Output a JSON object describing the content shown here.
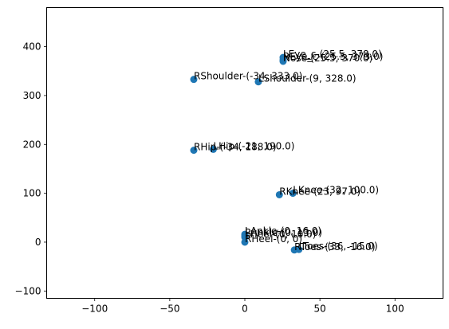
{
  "chart_data": {
    "type": "scatter",
    "title": "",
    "xlabel": "",
    "ylabel": "",
    "xlim": [
      -132,
      132
    ],
    "ylim": [
      -115,
      480
    ],
    "grid": false,
    "xticks": [
      -100,
      -50,
      0,
      50,
      100
    ],
    "yticks": [
      -100,
      0,
      100,
      200,
      300,
      400
    ],
    "xtick_labels": [
      "−100",
      "−50",
      "0",
      "50",
      "100"
    ],
    "ytick_labels": [
      "−100",
      "0",
      "100",
      "200",
      "300",
      "400"
    ],
    "marker_color": "#1f77b4",
    "points": [
      {
        "x": 25.5,
        "y": 378.0,
        "label": "LEye_c-(25.5, 378.0)"
      },
      {
        "x": 25.5,
        "y": 373.0,
        "label": "REye_c-(25.5, 373.0)"
      },
      {
        "x": 25.5,
        "y": 370.0,
        "label": "Nose-(25.5, 370.0)"
      },
      {
        "x": 9,
        "y": 328.0,
        "label": "LShoulder-(9, 328.0)"
      },
      {
        "x": -34,
        "y": 333.0,
        "label": "RShoulder-(-34, 333.0)"
      },
      {
        "x": -21,
        "y": 190.0,
        "label": "LHip-(-21, 190.0)"
      },
      {
        "x": -34,
        "y": 188.0,
        "label": "RHip-(-34, 188.0)"
      },
      {
        "x": 32,
        "y": 100.0,
        "label": "LKnee-(32, 100.0)"
      },
      {
        "x": 23,
        "y": 97.0,
        "label": "RKnee-(23, 97.0)"
      },
      {
        "x": 0,
        "y": 16.0,
        "label": "LAnkle-(0, 16.0)"
      },
      {
        "x": 0,
        "y": 13.0,
        "label": "RAnkle-(0, 13.0)"
      },
      {
        "x": 0,
        "y": 10.0,
        "label": "LHeel-(0, 10.0)"
      },
      {
        "x": 0,
        "y": 0,
        "label": "RHeel-(0, 0)"
      },
      {
        "x": 36,
        "y": -15.0,
        "label": "LToes-(36, -15.0)"
      },
      {
        "x": 33,
        "y": -16.0,
        "label": "RToes-(33, -16.0)"
      }
    ]
  }
}
